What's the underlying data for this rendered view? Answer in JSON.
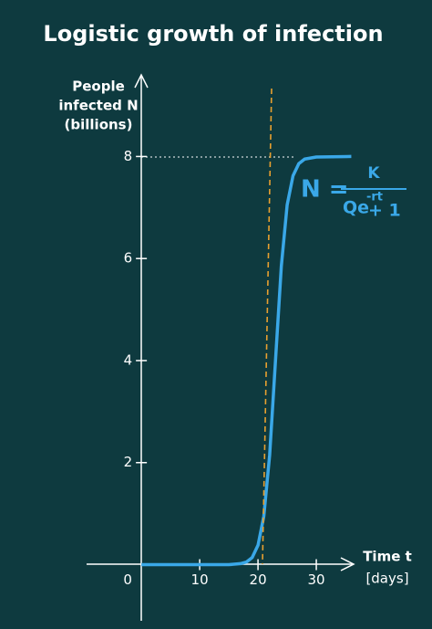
{
  "chart_data": {
    "type": "line",
    "title": "Logistic growth of infection",
    "y_label": [
      "People",
      "infected N",
      "(billions)"
    ],
    "x_label": [
      "Time t",
      "[days]"
    ],
    "formula": {
      "lhs": "N =",
      "numerator": "K",
      "denominator": "Qe",
      "exponent": "-rt",
      "plus": "+ 1"
    },
    "x": [
      0,
      10,
      15,
      17,
      18,
      19,
      20,
      21,
      22,
      23,
      24,
      25,
      26,
      27,
      28,
      30,
      36
    ],
    "values": [
      0,
      0,
      0,
      0.02,
      0.05,
      0.14,
      0.38,
      0.95,
      2.15,
      4,
      5.85,
      7.05,
      7.62,
      7.86,
      7.95,
      7.99,
      8
    ],
    "color": "#3aa8e8",
    "xlim": [
      -9.4,
      36.4
    ],
    "ylim": [
      -1.1,
      9.6
    ],
    "xticks": [
      0,
      10,
      20,
      30
    ],
    "yticks": [
      2,
      4,
      6,
      8
    ]
  }
}
